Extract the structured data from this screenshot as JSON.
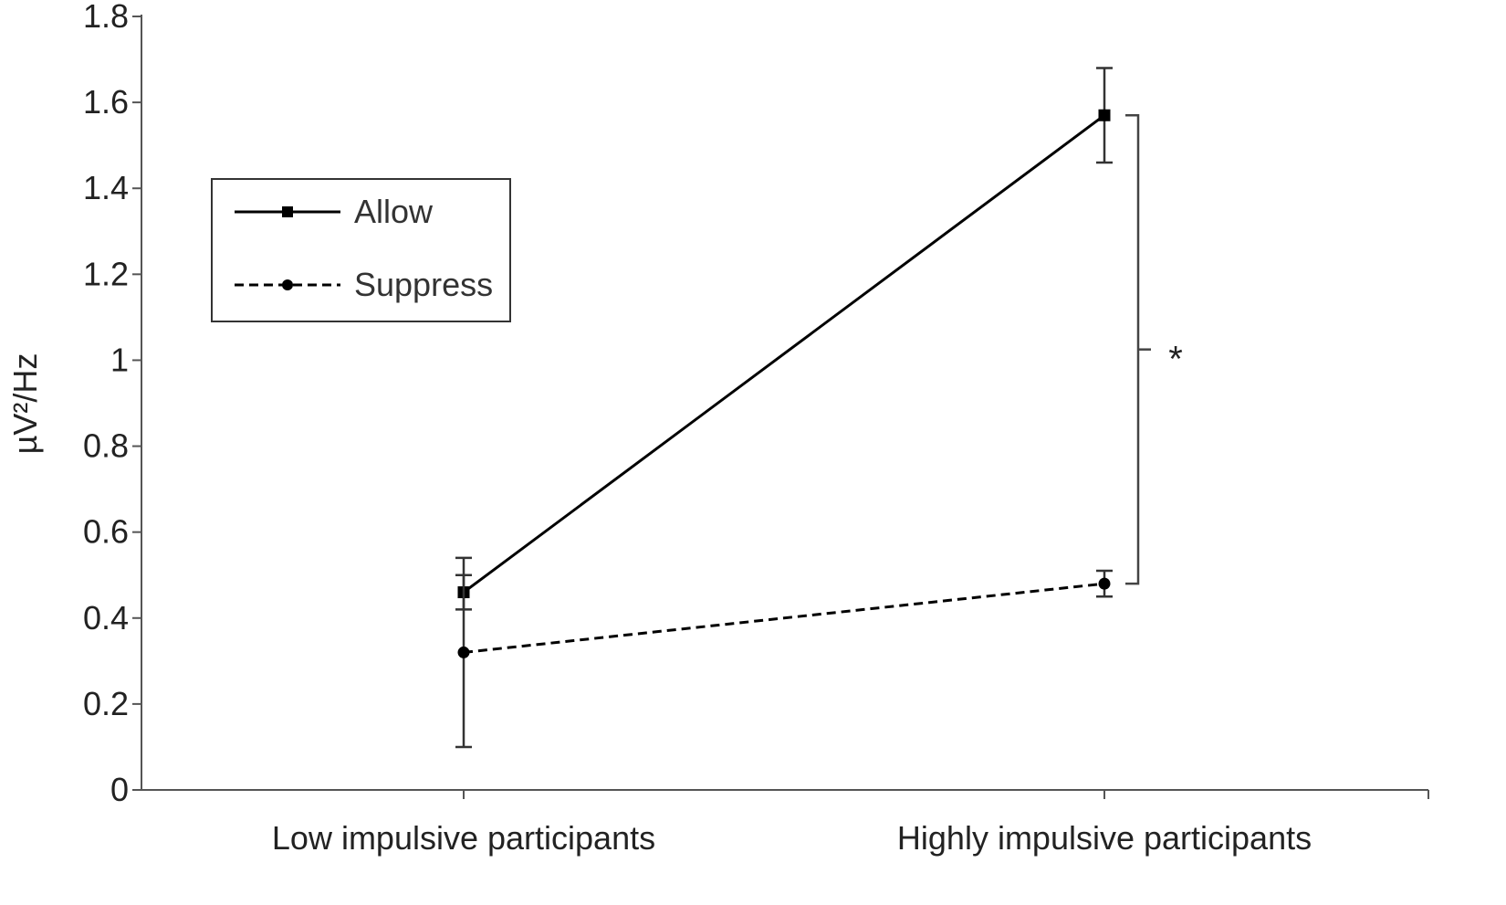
{
  "chart_data": {
    "type": "line",
    "categories": [
      "Low impulsive participants",
      "Highly impulsive participants"
    ],
    "ylabel": "µV²/Hz",
    "ylim": [
      0,
      1.8
    ],
    "yticks": [
      "0",
      "0.2",
      "0.4",
      "0.6",
      "0.8",
      "1",
      "1.2",
      "1.4",
      "1.6",
      "1.8"
    ],
    "grid": false,
    "legend_position": "top-left",
    "series": [
      {
        "name": "Allow",
        "values": [
          0.46,
          1.57
        ],
        "error_low": [
          0.42,
          1.46
        ],
        "error_high": [
          0.54,
          1.68
        ],
        "marker": "square",
        "line_style": "solid",
        "color": "#000000"
      },
      {
        "name": "Suppress",
        "values": [
          0.32,
          0.48
        ],
        "error_low": [
          0.1,
          0.45
        ],
        "error_high": [
          0.5,
          0.51
        ],
        "marker": "circle",
        "line_style": "dashed",
        "color": "#000000"
      }
    ],
    "annotations": [
      {
        "text": "*",
        "type": "significance-bracket",
        "category": "Highly impulsive participants",
        "between": [
          0.48,
          1.57
        ]
      }
    ]
  }
}
